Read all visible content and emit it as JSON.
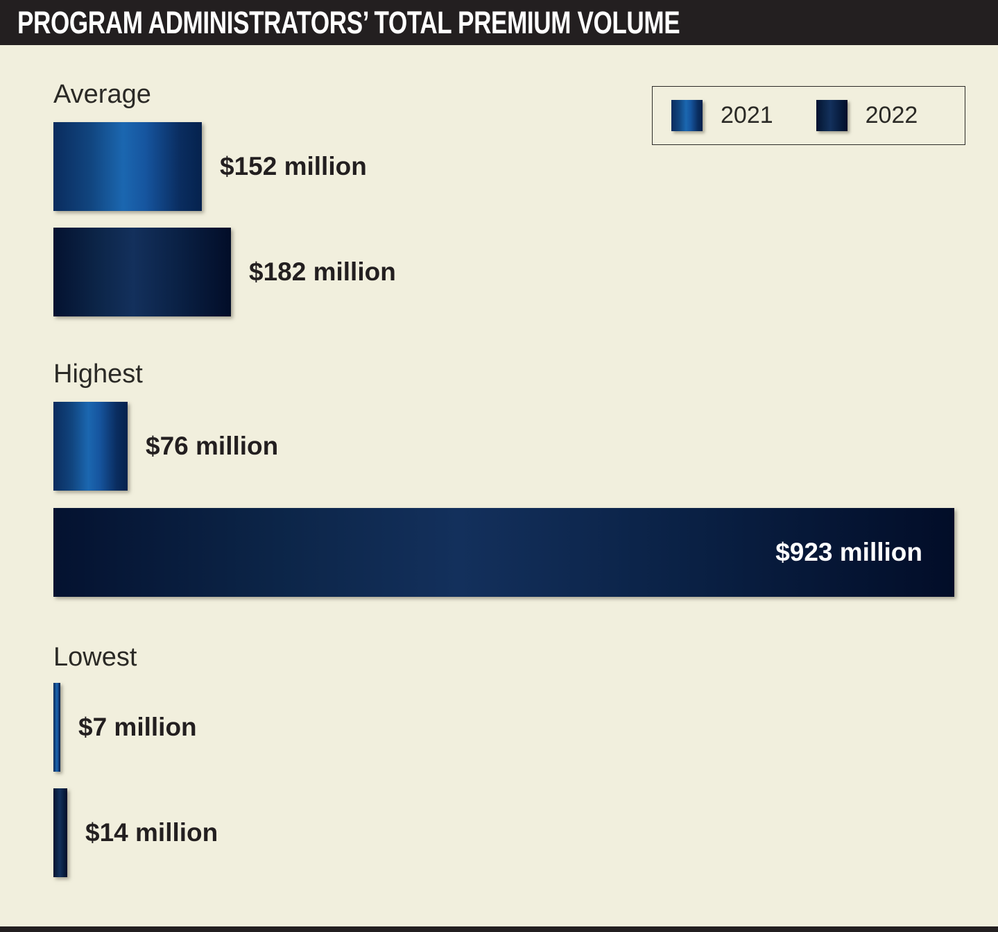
{
  "title": "PROGRAM ADMINISTRATORS’ TOTAL PREMIUM VOLUME",
  "legend": {
    "items": [
      {
        "label": "2021",
        "swatch": "blue-gradient"
      },
      {
        "label": "2022",
        "swatch": "navy-gradient"
      }
    ]
  },
  "colors": {
    "background": "#f1efdd",
    "header_bar": "#231f20",
    "text_dark": "#231f20",
    "text_light": "#ffffff",
    "bar_2021_highlight": "#1b67b0",
    "bar_2021_edge": "#0a2c5e",
    "bar_2022_highlight": "#13305c",
    "bar_2022_edge": "#020d28"
  },
  "chart_data": {
    "type": "bar",
    "orientation": "horizontal",
    "title": "PROGRAM ADMINISTRATORS’ TOTAL PREMIUM VOLUME",
    "unit": "USD millions",
    "categories": [
      "Average",
      "Highest",
      "Lowest"
    ],
    "series": [
      {
        "name": "2021",
        "values": [
          152,
          76,
          7
        ]
      },
      {
        "name": "2022",
        "values": [
          182,
          923,
          14
        ]
      }
    ],
    "data_labels": [
      [
        "$152 million",
        "$76 million",
        "$7 million"
      ],
      [
        "$182 million",
        "$923 million",
        "$14 million"
      ]
    ],
    "legend_position": "top-right",
    "grid": false,
    "axis_ticks": false
  },
  "groups": [
    {
      "label": "Average",
      "bars": [
        {
          "year": "2021",
          "value": 152,
          "value_label": "$152 million"
        },
        {
          "year": "2022",
          "value": 182,
          "value_label": "$182 million"
        }
      ]
    },
    {
      "label": "Highest",
      "bars": [
        {
          "year": "2021",
          "value": 76,
          "value_label": "$76 million"
        },
        {
          "year": "2022",
          "value": 923,
          "value_label": "$923 million"
        }
      ]
    },
    {
      "label": "Lowest",
      "bars": [
        {
          "year": "2021",
          "value": 7,
          "value_label": "$7 million"
        },
        {
          "year": "2022",
          "value": 14,
          "value_label": "$14 million"
        }
      ]
    }
  ]
}
